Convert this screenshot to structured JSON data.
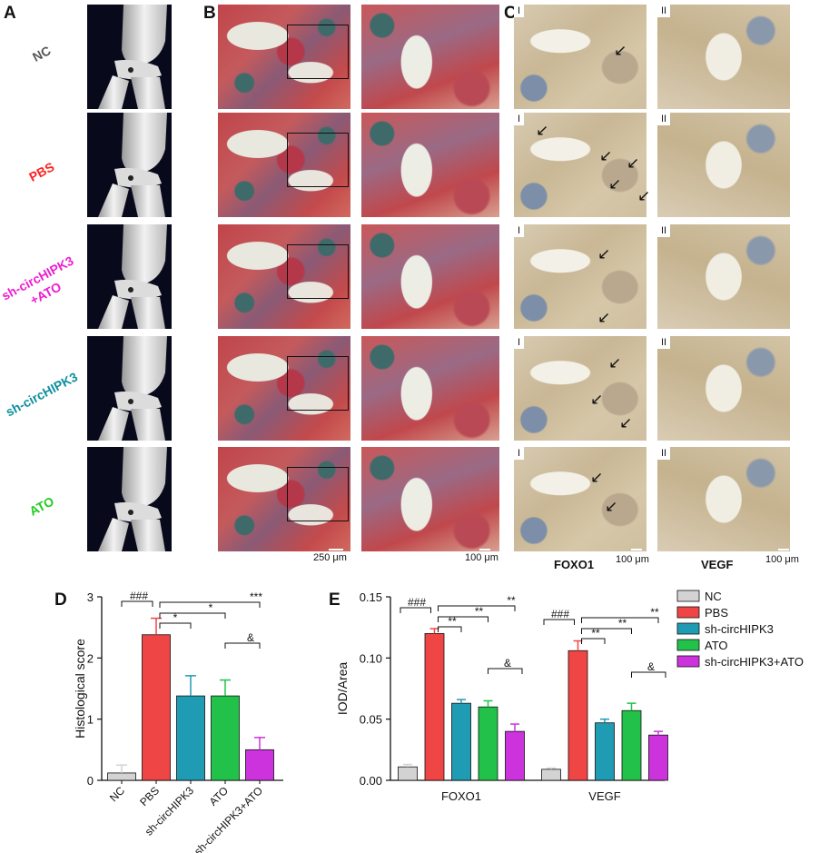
{
  "panel_letters": {
    "a": "A",
    "b": "B",
    "c": "C",
    "d": "D",
    "e": "E"
  },
  "groups": [
    "NC",
    "PBS",
    "sh-circHIPK3\n+ATO",
    "sh-circHIPK3",
    "ATO"
  ],
  "group_colors": [
    "#555555",
    "#ff2020",
    "#ee1fd0",
    "#0f8f9f",
    "#22cc22"
  ],
  "region_labels": {
    "one": "I",
    "two": "II"
  },
  "scale_bars": {
    "he_low": "250 μm",
    "he_high": "100 μm",
    "foxo1": "100 μm",
    "vegf": "100 μm"
  },
  "stain_labels": {
    "foxo1": "FOXO1",
    "vegf": "VEGF"
  },
  "colors": {
    "NC": "#d3d3d3",
    "PBS": "#f04545",
    "sh-circHIPK3": "#1f9bb4",
    "ATO": "#22c24a",
    "sh-circHIPK3+ATO": "#cc33dd"
  },
  "chart_data": [
    {
      "type": "bar",
      "ylabel": "Histological score",
      "categories": [
        "NC",
        "PBS",
        "sh-circHIPK3",
        "ATO",
        "sh-circHIPK3+ATO"
      ],
      "values": [
        0.12,
        2.38,
        1.38,
        1.38,
        0.5
      ],
      "errors": [
        0.13,
        0.27,
        0.33,
        0.26,
        0.2
      ],
      "ylim": [
        0,
        3
      ],
      "yticks": [
        "0",
        "1",
        "2",
        "3"
      ],
      "annotations": [
        "###",
        "*",
        "*",
        "***",
        "&"
      ]
    },
    {
      "type": "bar",
      "ylabel": "IOD/Area",
      "categories": [
        "FOXO1",
        "VEGF"
      ],
      "series": [
        {
          "name": "NC",
          "values": [
            0.011,
            0.009
          ],
          "errors": [
            0.002,
            0.001
          ]
        },
        {
          "name": "PBS",
          "values": [
            0.12,
            0.106
          ],
          "errors": [
            0.004,
            0.008
          ]
        },
        {
          "name": "sh-circHIPK3",
          "values": [
            0.063,
            0.047
          ],
          "errors": [
            0.003,
            0.003
          ]
        },
        {
          "name": "ATO",
          "values": [
            0.06,
            0.057
          ],
          "errors": [
            0.005,
            0.006
          ]
        },
        {
          "name": "sh-circHIPK3+ATO",
          "values": [
            0.04,
            0.037
          ],
          "errors": [
            0.006,
            0.003
          ]
        }
      ],
      "ylim": [
        0,
        0.15
      ],
      "yticks": [
        "0.00",
        "0.05",
        "0.10",
        "0.15"
      ],
      "annotations": [
        "###",
        "**",
        "**",
        "**",
        "&"
      ]
    }
  ]
}
